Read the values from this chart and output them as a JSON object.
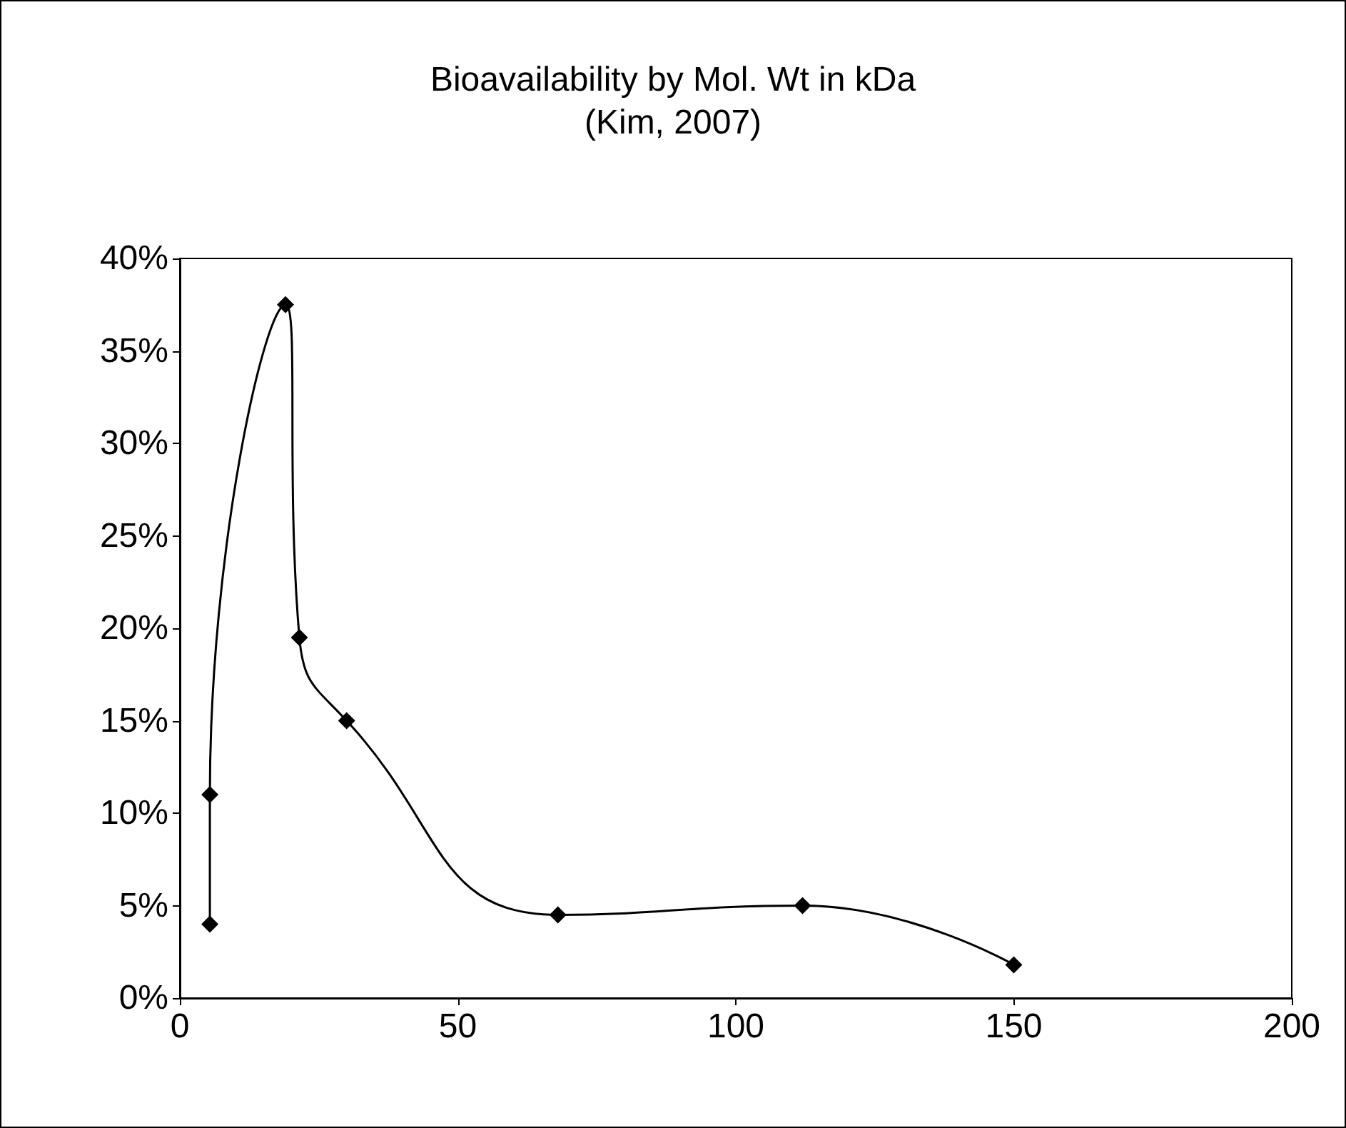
{
  "chart_data": {
    "type": "line",
    "title": "Bioavailability by Mol. Wt in kDa",
    "subtitle": "(Kim, 2007)",
    "x": [
      5.4,
      5.4,
      19,
      21.5,
      30,
      68,
      112,
      150
    ],
    "series": [
      {
        "color": "#000000",
        "values": [
          4,
          11,
          37.5,
          19.5,
          15,
          4.5,
          5,
          1.8
        ]
      }
    ],
    "xlim": [
      0,
      200
    ],
    "xticks": [
      0,
      50,
      100,
      150,
      200
    ],
    "ylim": [
      0,
      40
    ],
    "yticks": [
      {
        "value": 0,
        "label": "0%"
      },
      {
        "value": 5,
        "label": "5%"
      },
      {
        "value": 10,
        "label": "10%"
      },
      {
        "value": 15,
        "label": "15%"
      },
      {
        "value": 20,
        "label": "20%"
      },
      {
        "value": 25,
        "label": "25%"
      },
      {
        "value": 30,
        "label": "30%"
      },
      {
        "value": 35,
        "label": "35%"
      },
      {
        "value": 40,
        "label": "40%"
      }
    ],
    "marker": "diamond",
    "line_style": "solid",
    "grid": false
  }
}
